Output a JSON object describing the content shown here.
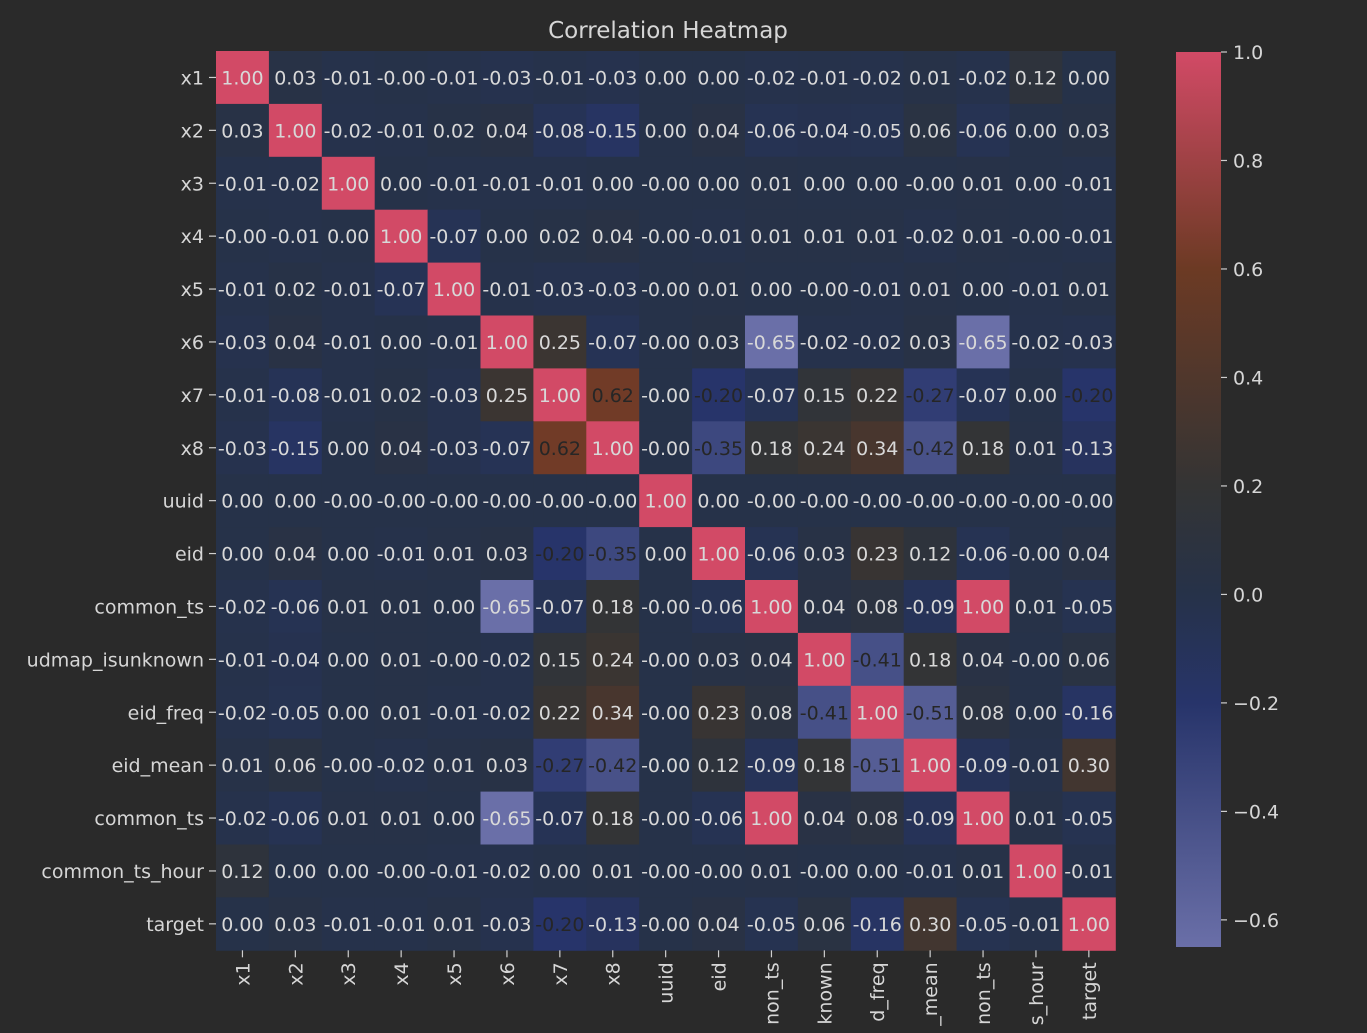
{
  "chart_data": {
    "type": "heatmap",
    "title": "Correlation Heatmap",
    "xlabel": "",
    "ylabel": "",
    "row_labels": [
      "x1",
      "x2",
      "x3",
      "x4",
      "x5",
      "x6",
      "x7",
      "x8",
      "uuid",
      "eid",
      "common_ts",
      "udmap_isunknown",
      "eid_freq",
      "eid_mean",
      "common_ts",
      "common_ts_hour",
      "target"
    ],
    "col_labels": [
      "x1",
      "x2",
      "x3",
      "x4",
      "x5",
      "x6",
      "x7",
      "x8",
      "uuid",
      "eid",
      "non_ts",
      "known",
      "d_freq",
      "_mean",
      "non_ts",
      "s_hour",
      "target"
    ],
    "values": [
      [
        "1.00",
        "0.03",
        "-0.01",
        "-0.00",
        "-0.01",
        "-0.03",
        "-0.01",
        "-0.03",
        "0.00",
        "0.00",
        "-0.02",
        "-0.01",
        "-0.02",
        "0.01",
        "-0.02",
        "0.12",
        "0.00"
      ],
      [
        "0.03",
        "1.00",
        "-0.02",
        "-0.01",
        "0.02",
        "0.04",
        "-0.08",
        "-0.15",
        "0.00",
        "0.04",
        "-0.06",
        "-0.04",
        "-0.05",
        "0.06",
        "-0.06",
        "0.00",
        "0.03"
      ],
      [
        "-0.01",
        "-0.02",
        "1.00",
        "0.00",
        "-0.01",
        "-0.01",
        "-0.01",
        "0.00",
        "-0.00",
        "0.00",
        "0.01",
        "0.00",
        "0.00",
        "-0.00",
        "0.01",
        "0.00",
        "-0.01"
      ],
      [
        "-0.00",
        "-0.01",
        "0.00",
        "1.00",
        "-0.07",
        "0.00",
        "0.02",
        "0.04",
        "-0.00",
        "-0.01",
        "0.01",
        "0.01",
        "0.01",
        "-0.02",
        "0.01",
        "-0.00",
        "-0.01"
      ],
      [
        "-0.01",
        "0.02",
        "-0.01",
        "-0.07",
        "1.00",
        "-0.01",
        "-0.03",
        "-0.03",
        "-0.00",
        "0.01",
        "0.00",
        "-0.00",
        "-0.01",
        "0.01",
        "0.00",
        "-0.01",
        "0.01"
      ],
      [
        "-0.03",
        "0.04",
        "-0.01",
        "0.00",
        "-0.01",
        "1.00",
        "0.25",
        "-0.07",
        "-0.00",
        "0.03",
        "-0.65",
        "-0.02",
        "-0.02",
        "0.03",
        "-0.65",
        "-0.02",
        "-0.03"
      ],
      [
        "-0.01",
        "-0.08",
        "-0.01",
        "0.02",
        "-0.03",
        "0.25",
        "1.00",
        "0.62",
        "-0.00",
        "-0.20",
        "-0.07",
        "0.15",
        "0.22",
        "-0.27",
        "-0.07",
        "0.00",
        "-0.20"
      ],
      [
        "-0.03",
        "-0.15",
        "0.00",
        "0.04",
        "-0.03",
        "-0.07",
        "0.62",
        "1.00",
        "-0.00",
        "-0.35",
        "0.18",
        "0.24",
        "0.34",
        "-0.42",
        "0.18",
        "0.01",
        "-0.13"
      ],
      [
        "0.00",
        "0.00",
        "-0.00",
        "-0.00",
        "-0.00",
        "-0.00",
        "-0.00",
        "-0.00",
        "1.00",
        "0.00",
        "-0.00",
        "-0.00",
        "-0.00",
        "-0.00",
        "-0.00",
        "-0.00",
        "-0.00"
      ],
      [
        "0.00",
        "0.04",
        "0.00",
        "-0.01",
        "0.01",
        "0.03",
        "-0.20",
        "-0.35",
        "0.00",
        "1.00",
        "-0.06",
        "0.03",
        "0.23",
        "0.12",
        "-0.06",
        "-0.00",
        "0.04"
      ],
      [
        "-0.02",
        "-0.06",
        "0.01",
        "0.01",
        "0.00",
        "-0.65",
        "-0.07",
        "0.18",
        "-0.00",
        "-0.06",
        "1.00",
        "0.04",
        "0.08",
        "-0.09",
        "1.00",
        "0.01",
        "-0.05"
      ],
      [
        "-0.01",
        "-0.04",
        "0.00",
        "0.01",
        "-0.00",
        "-0.02",
        "0.15",
        "0.24",
        "-0.00",
        "0.03",
        "0.04",
        "1.00",
        "-0.41",
        "0.18",
        "0.04",
        "-0.00",
        "0.06"
      ],
      [
        "-0.02",
        "-0.05",
        "0.00",
        "0.01",
        "-0.01",
        "-0.02",
        "0.22",
        "0.34",
        "-0.00",
        "0.23",
        "0.08",
        "-0.41",
        "1.00",
        "-0.51",
        "0.08",
        "0.00",
        "-0.16"
      ],
      [
        "0.01",
        "0.06",
        "-0.00",
        "-0.02",
        "0.01",
        "0.03",
        "-0.27",
        "-0.42",
        "-0.00",
        "0.12",
        "-0.09",
        "0.18",
        "-0.51",
        "1.00",
        "-0.09",
        "-0.01",
        "0.30"
      ],
      [
        "-0.02",
        "-0.06",
        "0.01",
        "0.01",
        "0.00",
        "-0.65",
        "-0.07",
        "0.18",
        "-0.00",
        "-0.06",
        "1.00",
        "0.04",
        "0.08",
        "-0.09",
        "1.00",
        "0.01",
        "-0.05"
      ],
      [
        "0.12",
        "0.00",
        "0.00",
        "-0.00",
        "-0.01",
        "-0.02",
        "0.00",
        "0.01",
        "-0.00",
        "-0.00",
        "0.01",
        "-0.00",
        "0.00",
        "-0.01",
        "0.01",
        "1.00",
        "-0.01"
      ],
      [
        "0.00",
        "0.03",
        "-0.01",
        "-0.01",
        "0.01",
        "-0.03",
        "-0.20",
        "-0.13",
        "-0.00",
        "0.04",
        "-0.05",
        "0.06",
        "-0.16",
        "0.30",
        "-0.05",
        "-0.01",
        "1.00"
      ]
    ],
    "colorbar": {
      "min": -0.65,
      "max": 1.0,
      "ticks": [
        1.0,
        0.8,
        0.6,
        0.4,
        0.2,
        0.0,
        -0.2,
        -0.4,
        -0.6
      ],
      "tick_labels": [
        "1.0",
        "0.8",
        "0.6",
        "0.4",
        "0.2",
        "0.0",
        "−0.2",
        "−0.4",
        "−0.6"
      ],
      "colors": [
        {
          "v": -0.65,
          "c": "#6a6fa8"
        },
        {
          "v": -0.2,
          "c": "#27346a"
        },
        {
          "v": 0.0,
          "c": "#263249"
        },
        {
          "v": 0.2,
          "c": "#343434"
        },
        {
          "v": 0.6,
          "c": "#6c3a24"
        },
        {
          "v": 1.0,
          "c": "#d24a66"
        }
      ]
    },
    "grid": false,
    "legend": "right"
  }
}
